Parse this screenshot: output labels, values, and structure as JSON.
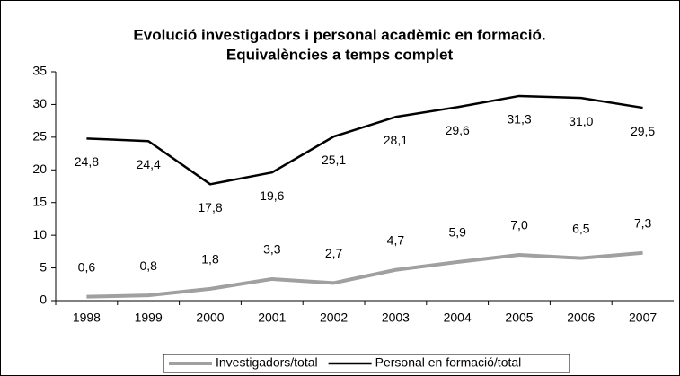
{
  "chart_data": {
    "type": "line",
    "title": [
      "Evolució investigadors i personal acadèmic en formació.",
      "Equivalències a temps complet"
    ],
    "categories": [
      "1998",
      "1999",
      "2000",
      "2001",
      "2002",
      "2003",
      "2004",
      "2005",
      "2006",
      "2007"
    ],
    "series": [
      {
        "name": "Investigadors/total",
        "color": "#a0a0a0",
        "values": [
          0.6,
          0.8,
          1.8,
          3.3,
          2.7,
          4.7,
          5.9,
          7.0,
          6.5,
          7.3
        ],
        "value_labels": [
          "0,6",
          "0,8",
          "1,8",
          "3,3",
          "2,7",
          "4,7",
          "5,9",
          "7,0",
          "6,5",
          "7,3"
        ]
      },
      {
        "name": "Personal en formació/total",
        "color": "#000000",
        "values": [
          24.8,
          24.4,
          17.8,
          19.6,
          25.1,
          28.1,
          29.6,
          31.3,
          31.0,
          29.5
        ],
        "value_labels": [
          "24,8",
          "24,4",
          "17,8",
          "19,6",
          "25,1",
          "28,1",
          "29,6",
          "31,3",
          "31,0",
          "29,5"
        ]
      }
    ],
    "ylim": [
      0,
      35
    ],
    "yticks": [
      0,
      5,
      10,
      15,
      20,
      25,
      30,
      35
    ],
    "grid": false,
    "legend": "bottom"
  }
}
